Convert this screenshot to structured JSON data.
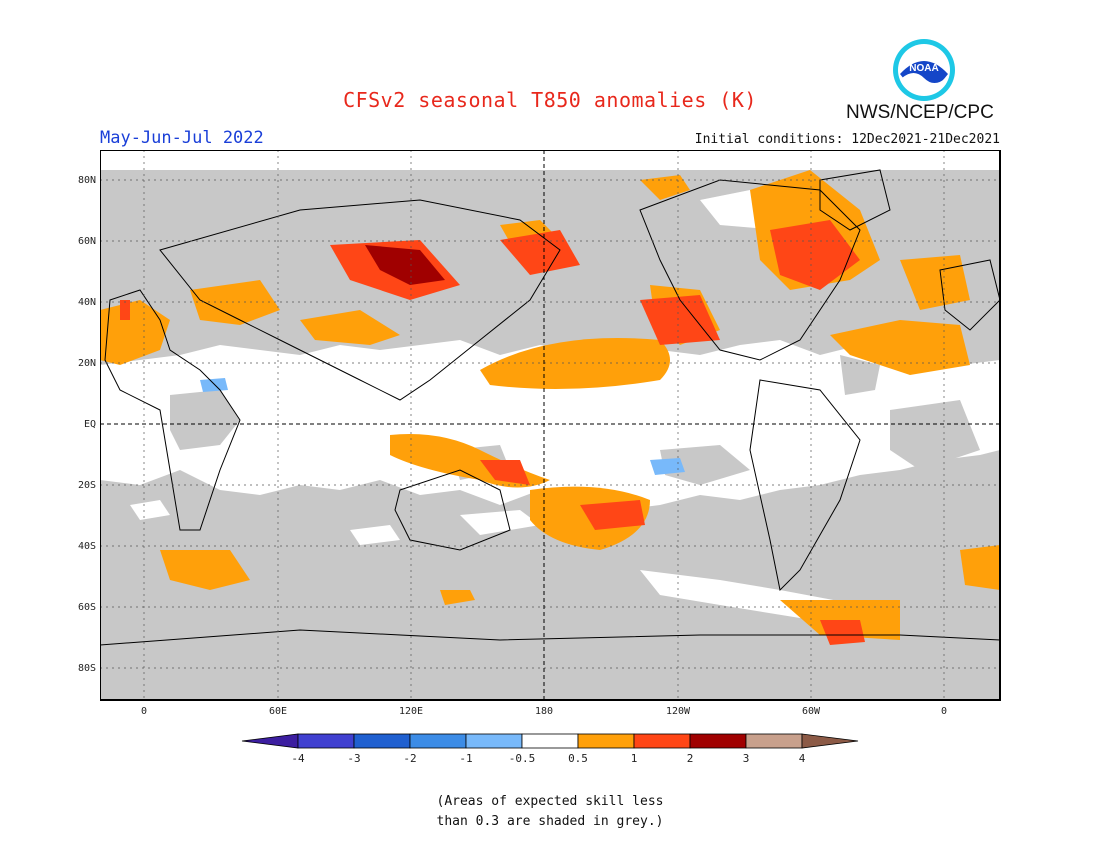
{
  "header": {
    "title": "CFSv2 seasonal T850 anomalies (K)",
    "season": "May-Jun-Jul 2022",
    "agency": "NWS/NCEP/CPC",
    "initial_conditions": "Initial conditions: 12Dec2021-21Dec2021",
    "logo_text": "NOAA"
  },
  "map": {
    "lat_labels": [
      "80N",
      "60N",
      "40N",
      "20N",
      "EQ",
      "20S",
      "40S",
      "60S",
      "80S"
    ],
    "lon_labels": [
      "0",
      "60E",
      "120E",
      "180",
      "120W",
      "60W",
      "0"
    ],
    "colors": {
      "grey_low_skill": "#c8c8c8",
      "neutral": "#ffffff",
      "warm_0_5_1": "#ffa00a",
      "warm_1_2": "#ff4616",
      "warm_2_3": "#a00000",
      "cool_-1_-0_5": "#78b9fa",
      "coast": "#000000"
    }
  },
  "colorbar": {
    "labels": [
      "-4",
      "-3",
      "-2",
      "-1",
      "-0.5",
      "0.5",
      "1",
      "2",
      "3",
      "4"
    ],
    "colors": [
      "#3c1ea0",
      "#4040d0",
      "#2060d0",
      "#3c8ce6",
      "#78b9fa",
      "#ffffff",
      "#ffa00a",
      "#ff4616",
      "#a00000",
      "#c8a08c",
      "#8c5a46"
    ]
  },
  "note": {
    "line1": "(Areas of expected skill less",
    "line2": "than 0.3 are shaded in grey.)"
  }
}
